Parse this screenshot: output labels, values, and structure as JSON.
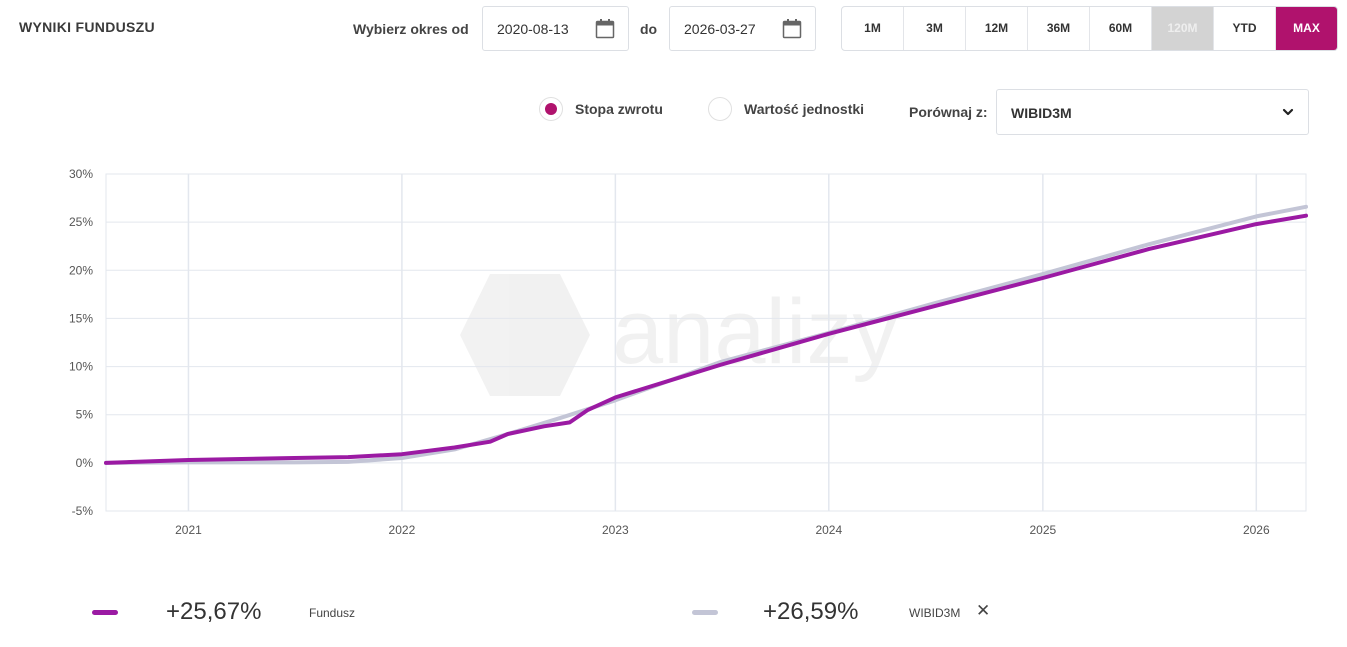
{
  "header": {
    "title": "WYNIKI FUNDUSZU"
  },
  "range": {
    "from_label": "Wybierz okres od",
    "from_value": "2020-08-13",
    "to_label": "do",
    "to_value": "2026-03-27"
  },
  "periods": [
    {
      "label": "1M",
      "state": "normal"
    },
    {
      "label": "3M",
      "state": "normal"
    },
    {
      "label": "12M",
      "state": "normal"
    },
    {
      "label": "36M",
      "state": "normal"
    },
    {
      "label": "60M",
      "state": "normal"
    },
    {
      "label": "120M",
      "state": "disabled"
    },
    {
      "label": "YTD",
      "state": "normal"
    },
    {
      "label": "MAX",
      "state": "active"
    }
  ],
  "options": {
    "return_label": "Stopa zwrotu",
    "return_checked": true,
    "unit_value_label": "Wartość jednostki",
    "unit_value_checked": false,
    "compare_label": "Porównaj z:",
    "compare_value": "WIBID3M"
  },
  "colors": {
    "accent": "#b0126d",
    "fund_line": "#9b1aa3",
    "benchmark_line": "#c3c5d6",
    "grid": "#e3e7ee"
  },
  "icons": {
    "date_picker": "calendar-icon",
    "select": "chevron-down-icon",
    "remove": "close-icon"
  },
  "chart_data": {
    "type": "line",
    "x_type": "date",
    "x_range": [
      "2020-08-13",
      "2026-03-27"
    ],
    "y_range": [
      -5,
      30
    ],
    "y_ticks": [
      "30%",
      "25%",
      "20%",
      "15%",
      "10%",
      "5%",
      "0%",
      "-5%"
    ],
    "y_tick_values": [
      30,
      25,
      20,
      15,
      10,
      5,
      0,
      -5
    ],
    "x_ticks": [
      "2021",
      "2022",
      "2023",
      "2024",
      "2025",
      "2026"
    ],
    "x_tick_dates": [
      "2021-01-01",
      "2022-01-01",
      "2023-01-01",
      "2024-01-01",
      "2025-01-01",
      "2026-01-01"
    ],
    "grid": true,
    "series": [
      {
        "name": "Fundusz",
        "color": "#9b1aa3",
        "points": [
          [
            "2020-08-13",
            0.0
          ],
          [
            "2021-01-01",
            0.3
          ],
          [
            "2021-07-01",
            0.5
          ],
          [
            "2021-10-01",
            0.6
          ],
          [
            "2022-01-01",
            0.9
          ],
          [
            "2022-04-01",
            1.6
          ],
          [
            "2022-06-01",
            2.2
          ],
          [
            "2022-07-01",
            3.0
          ],
          [
            "2022-09-01",
            3.8
          ],
          [
            "2022-10-15",
            4.2
          ],
          [
            "2022-11-15",
            5.5
          ],
          [
            "2023-01-01",
            6.8
          ],
          [
            "2023-07-01",
            10.2
          ],
          [
            "2024-01-01",
            13.4
          ],
          [
            "2024-07-01",
            16.3
          ],
          [
            "2025-01-01",
            19.2
          ],
          [
            "2025-07-01",
            22.2
          ],
          [
            "2026-01-01",
            24.8
          ],
          [
            "2026-03-27",
            25.67
          ]
        ]
      },
      {
        "name": "WIBID3M",
        "color": "#c3c5d6",
        "points": [
          [
            "2020-08-13",
            0.0
          ],
          [
            "2021-01-01",
            0.05
          ],
          [
            "2021-07-01",
            0.05
          ],
          [
            "2021-10-01",
            0.1
          ],
          [
            "2022-01-01",
            0.5
          ],
          [
            "2022-04-01",
            1.4
          ],
          [
            "2022-07-01",
            3.0
          ],
          [
            "2022-10-01",
            4.7
          ],
          [
            "2023-01-01",
            6.5
          ],
          [
            "2023-07-01",
            10.5
          ],
          [
            "2024-01-01",
            13.5
          ],
          [
            "2024-07-01",
            16.6
          ],
          [
            "2025-01-01",
            19.6
          ],
          [
            "2025-07-01",
            22.7
          ],
          [
            "2026-01-01",
            25.6
          ],
          [
            "2026-03-27",
            26.59
          ]
        ]
      }
    ]
  },
  "legend": [
    {
      "value": "+25,67%",
      "name": "Fundusz",
      "color": "#9b1aa3"
    },
    {
      "value": "+26,59%",
      "name": "WIBID3M",
      "color": "#c3c5d6",
      "removable": true
    }
  ]
}
